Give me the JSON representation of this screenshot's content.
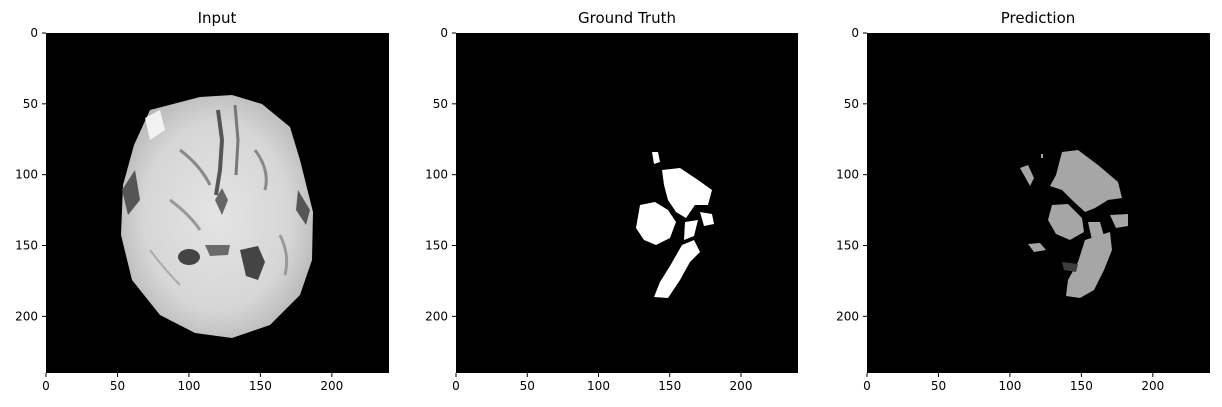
{
  "panels": [
    {
      "title": "Input",
      "image": "brain-mri-axial-slice",
      "xticks": [
        0,
        50,
        100,
        150,
        200
      ],
      "yticks": [
        0,
        50,
        100,
        150,
        200
      ]
    },
    {
      "title": "Ground Truth",
      "image": "tumor-segmentation-mask",
      "xticks": [
        0,
        50,
        100,
        150,
        200
      ],
      "yticks": [
        0,
        50,
        100,
        150,
        200
      ]
    },
    {
      "title": "Prediction",
      "image": "predicted-segmentation-mask",
      "xticks": [
        0,
        50,
        100,
        150,
        200
      ],
      "yticks": [
        0,
        50,
        100,
        150,
        200
      ]
    }
  ],
  "image_size": 240,
  "colors": {
    "background": "#000000",
    "mask_white": "#ffffff",
    "mask_gray": "#a6a6a6",
    "mask_dark": "#3c3c3c"
  }
}
